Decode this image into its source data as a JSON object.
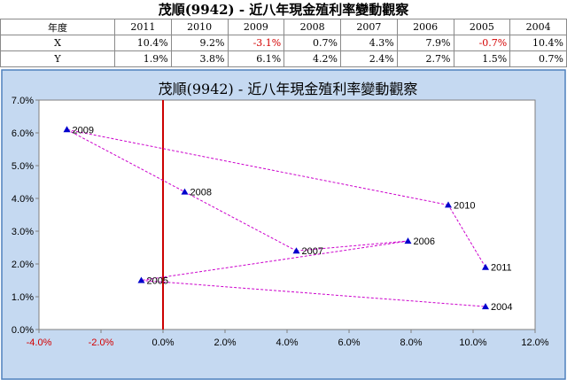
{
  "page_title": "茂順(9942) - 近八年現金殖利率變動觀察",
  "table": {
    "corner_label": "年度",
    "columns": [
      "2011",
      "2010",
      "2009",
      "2008",
      "2007",
      "2006",
      "2005",
      "2004"
    ],
    "rows": [
      {
        "label": "X",
        "values": [
          "10.4%",
          "9.2%",
          "-3.1%",
          "0.7%",
          "4.3%",
          "7.9%",
          "-0.7%",
          "10.4%"
        ]
      },
      {
        "label": "Y",
        "values": [
          "1.9%",
          "3.8%",
          "6.1%",
          "4.2%",
          "2.4%",
          "2.7%",
          "1.5%",
          "0.7%"
        ]
      }
    ]
  },
  "colors": {
    "panel_bg": "#c5d9f1",
    "panel_border": "#4f81bd",
    "plot_bg": "#ffffff",
    "marker": "#0000cc",
    "line": "#cc00cc",
    "y_axis_line": "#cc0000",
    "negative_text": "#d40000"
  },
  "chart_data": {
    "type": "scatter",
    "title": "茂順(9942) - 近八年現金殖利率變動觀察",
    "connected": true,
    "line_style": "dashed",
    "marker": "triangle",
    "points": [
      {
        "label": "2011",
        "x": 10.4,
        "y": 1.9
      },
      {
        "label": "2010",
        "x": 9.2,
        "y": 3.8
      },
      {
        "label": "2009",
        "x": -3.1,
        "y": 6.1
      },
      {
        "label": "2008",
        "x": 0.7,
        "y": 4.2
      },
      {
        "label": "2007",
        "x": 4.3,
        "y": 2.4
      },
      {
        "label": "2006",
        "x": 7.9,
        "y": 2.7
      },
      {
        "label": "2005",
        "x": -0.7,
        "y": 1.5
      },
      {
        "label": "2004",
        "x": 10.4,
        "y": 0.7
      }
    ],
    "xlim": [
      -4,
      12
    ],
    "ylim": [
      0,
      7
    ],
    "xticks": [
      -4,
      -2,
      0,
      2,
      4,
      6,
      8,
      10,
      12
    ],
    "yticks": [
      0,
      1,
      2,
      3,
      4,
      5,
      6,
      7
    ],
    "xtick_labels": [
      "-4.0%",
      "-2.0%",
      "0.0%",
      "2.0%",
      "4.0%",
      "6.0%",
      "8.0%",
      "10.0%",
      "12.0%"
    ],
    "ytick_labels": [
      "0.0%",
      "1.0%",
      "2.0%",
      "3.0%",
      "4.0%",
      "5.0%",
      "6.0%",
      "7.0%"
    ],
    "grid": false
  }
}
